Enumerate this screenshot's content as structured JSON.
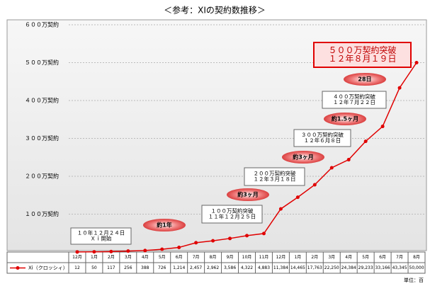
{
  "chart_data": {
    "type": "line",
    "title": "＜参考：XIの契約数推移＞",
    "unit_note": "単位：百",
    "categories": [
      "12月",
      "1月",
      "2月",
      "3月",
      "4月",
      "5月",
      "6月",
      "7月",
      "8月",
      "9月",
      "10月",
      "11月",
      "12月",
      "1月",
      "2月",
      "3月",
      "4月",
      "5月",
      "6月",
      "7月",
      "8月"
    ],
    "series": [
      {
        "name": "Xi（クロッシィ）",
        "color": "#e00000",
        "values": [
          12,
          50,
          117,
          256,
          388,
          726,
          1214,
          2457,
          2962,
          3586,
          4322,
          4883,
          11384,
          14465,
          17763,
          22250,
          24384,
          29233,
          33166,
          43345,
          50000
        ],
        "value_labels": [
          "12",
          "50",
          "117",
          "256",
          "388",
          "726",
          "1,214",
          "2,457",
          "2,962",
          "3,586",
          "4,322",
          "4,883",
          "11,384",
          "14,465",
          "17,763",
          "22,250",
          "24,384",
          "29,233",
          "33,166",
          "43,345",
          "50,000"
        ]
      }
    ],
    "ylim": [
      0,
      60000
    ],
    "yticks": [
      {
        "value": 0,
        "label": ""
      },
      {
        "value": 10000,
        "label": "１００万契約"
      },
      {
        "value": 20000,
        "label": "２００万契約"
      },
      {
        "value": 30000,
        "label": "３００万契約"
      },
      {
        "value": 40000,
        "label": "４００万契約"
      },
      {
        "value": 50000,
        "label": "５００万契約"
      },
      {
        "value": 60000,
        "label": "６００万契約"
      }
    ],
    "grid": true,
    "milestones": [
      {
        "lines": [
          "１０年１２月２４日",
          "Ｘｉ開始"
        ]
      },
      {
        "lines": [
          "１００万契約突破",
          "１１年１２月２５日"
        ]
      },
      {
        "lines": [
          "２００万契約突破",
          "１２年３月１８日"
        ]
      },
      {
        "lines": [
          "３００万契約突破",
          "１２年６月８日"
        ]
      },
      {
        "lines": [
          "４００万契約突破",
          "１２年７月２２日"
        ]
      },
      {
        "lines": [
          "５００万契約突破",
          "１２年８月１９日"
        ]
      }
    ],
    "intervals": [
      "約1年",
      "約3ヶ月",
      "約3ヶ月",
      "約1.5ヶ月",
      "28日"
    ]
  }
}
